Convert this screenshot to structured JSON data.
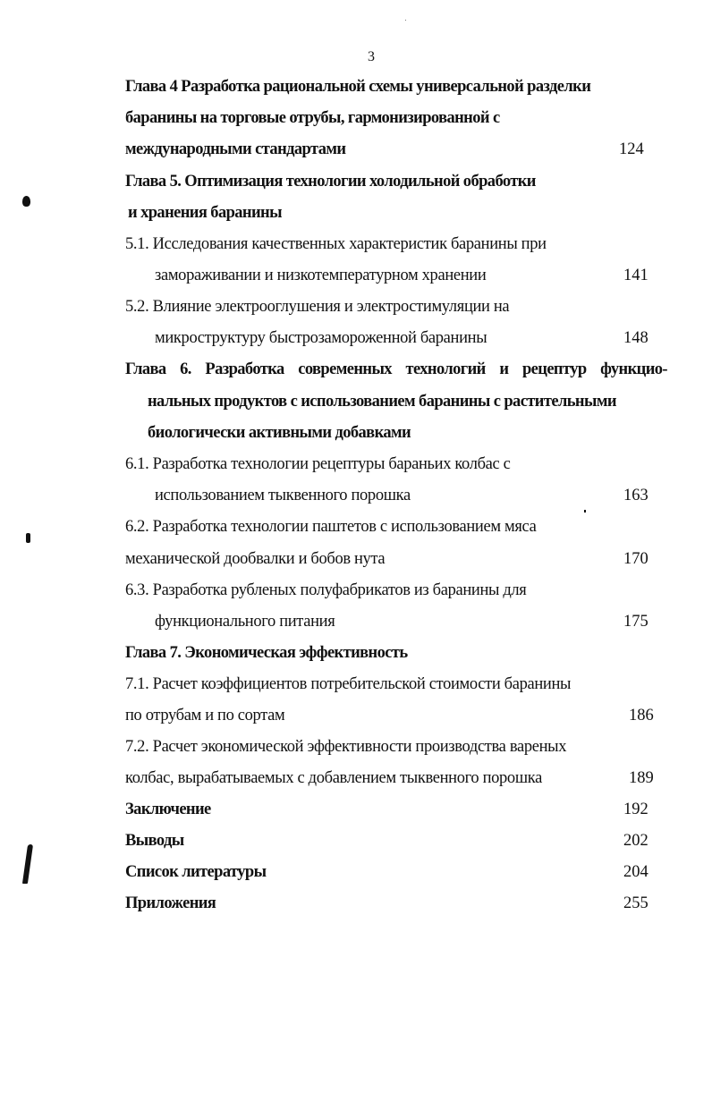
{
  "page_number": "3",
  "toc": [
    {
      "lines": [
        "Глава 4 Разработка рациональной схемы универсальной разделки",
        "баранины на торговые отрубы, гармонизированной с",
        "международными стандартами"
      ],
      "page": "124"
    },
    {
      "lines": [
        "Глава 5. Оптимизация технологии холодильной обработки",
        "и хранения баранины"
      ],
      "page": ""
    },
    {
      "lines": [
        "5.1. Исследования качественных характеристик баранины при",
        "замораживании и низкотемпературном хранении"
      ],
      "page": "141"
    },
    {
      "lines": [
        "5.2. Влияние электрооглушения и электростимуляции на",
        "микроструктуру быстрозамороженной баранины"
      ],
      "page": "148"
    },
    {
      "lines": [
        "Глава 6. Разработка современных технологий и рецептур функцио-",
        "нальных продуктов с использованием баранины с растительными",
        "биологически активными добавками"
      ],
      "page": ""
    },
    {
      "lines": [
        "6.1. Разработка технологии рецептуры бараньих колбас с",
        "использованием тыквенного порошка"
      ],
      "page": "163"
    },
    {
      "lines": [
        "6.2. Разработка технологии паштетов с использованием мяса",
        "механической дообвалки и бобов нута"
      ],
      "page": "170"
    },
    {
      "lines": [
        "6.3. Разработка рубленых полуфабрикатов из баранины для",
        "функционального питания"
      ],
      "page": "175"
    },
    {
      "lines": [
        "Глава 7. Экономическая эффективность"
      ],
      "page": ""
    },
    {
      "lines": [
        "7.1. Расчет коэффициентов потребительской стоимости баранины",
        "по отрубам и по сортам"
      ],
      "page": "186"
    },
    {
      "lines": [
        "7.2. Расчет экономической эффективности производства вареных",
        "колбас, вырабатываемых с добавлением тыквенного порошка"
      ],
      "page": "189"
    },
    {
      "lines": [
        "Заключение"
      ],
      "page": "192"
    },
    {
      "lines": [
        "Выводы"
      ],
      "page": "202"
    },
    {
      "lines": [
        "Список литературы"
      ],
      "page": "204"
    },
    {
      "lines": [
        "Приложения"
      ],
      "page": "255"
    }
  ]
}
